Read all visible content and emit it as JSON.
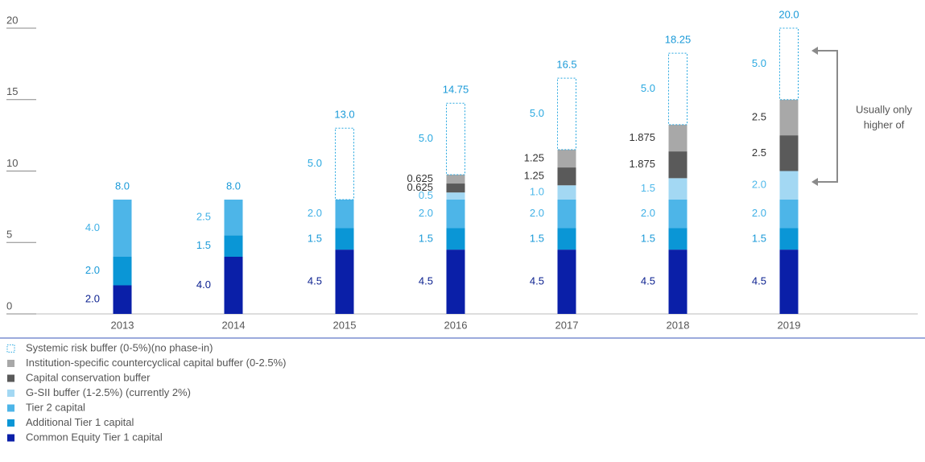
{
  "chart_data": {
    "type": "stacked_bar",
    "categories": [
      "2013",
      "2014",
      "2015",
      "2016",
      "2017",
      "2018",
      "2019"
    ],
    "ylim": [
      0,
      20
    ],
    "yticks": [
      0,
      5,
      10,
      15,
      20
    ],
    "series": [
      {
        "name": "Common Equity Tier 1 capital",
        "color": "#0a1fa8",
        "label_color": "#0a1f8f",
        "values": [
          2.0,
          4.0,
          4.5,
          4.5,
          4.5,
          4.5,
          4.5
        ],
        "value_labels": [
          "2.0",
          "4.0",
          "4.5",
          "4.5",
          "4.5",
          "4.5",
          "4.5"
        ]
      },
      {
        "name": "Additional Tier 1 capital",
        "color": "#0a96d6",
        "label_color": "#1a9ad8",
        "values": [
          2.0,
          1.5,
          1.5,
          1.5,
          1.5,
          1.5,
          1.5
        ],
        "value_labels": [
          "2.0",
          "1.5",
          "1.5",
          "1.5",
          "1.5",
          "1.5",
          "1.5"
        ]
      },
      {
        "name": "Tier 2 capital",
        "color": "#4db5e8",
        "label_color": "#3fb0e6",
        "values": [
          4.0,
          2.5,
          2.0,
          2.0,
          2.0,
          2.0,
          2.0
        ],
        "value_labels": [
          "4.0",
          "2.5",
          "2.0",
          "2.0",
          "2.0",
          "2.0",
          "2.0"
        ]
      },
      {
        "name": "G-SII buffer (1-2.5%) (currently 2%)",
        "color": "#a3d8f3",
        "label_color": "#4db8ea",
        "values": [
          null,
          null,
          null,
          0.5,
          1.0,
          1.5,
          2.0
        ],
        "value_labels": [
          null,
          null,
          null,
          "0.5",
          "1.0",
          "1.5",
          "2.0"
        ]
      },
      {
        "name": "Capital conservation buffer",
        "color": "#5a5a5a",
        "label_color": "#333333",
        "values": [
          null,
          null,
          null,
          0.625,
          1.25,
          1.875,
          2.5
        ],
        "value_labels": [
          null,
          null,
          null,
          "0.625",
          "1.25",
          "1.875",
          "2.5"
        ]
      },
      {
        "name": "Institution-specific countercyclical capital buffer  (0-2.5%)",
        "color": "#a8a8a8",
        "label_color": "#333333",
        "values": [
          null,
          null,
          null,
          0.625,
          1.25,
          1.875,
          2.5
        ],
        "value_labels": [
          null,
          null,
          null,
          "0.625",
          "1.25",
          "1.875",
          "2.5"
        ]
      },
      {
        "name": "Systemic risk buffer (0-5%)(no phase-in)",
        "color": "#29a8e0",
        "outline": true,
        "label_color": "#29a8e0",
        "values": [
          null,
          null,
          5.0,
          5.0,
          5.0,
          5.0,
          5.0
        ],
        "value_labels": [
          null,
          null,
          "5.0",
          "5.0",
          "5.0",
          "5.0",
          "5.0"
        ]
      }
    ],
    "totals": [
      8.0,
      8.0,
      13.0,
      14.75,
      16.5,
      18.25,
      20.0
    ],
    "total_labels": [
      "8.0",
      "8.0",
      "13.0",
      "14.75",
      "16.5",
      "18.25",
      "20.0"
    ],
    "annotation": [
      "Usually only",
      "higher of"
    ]
  }
}
